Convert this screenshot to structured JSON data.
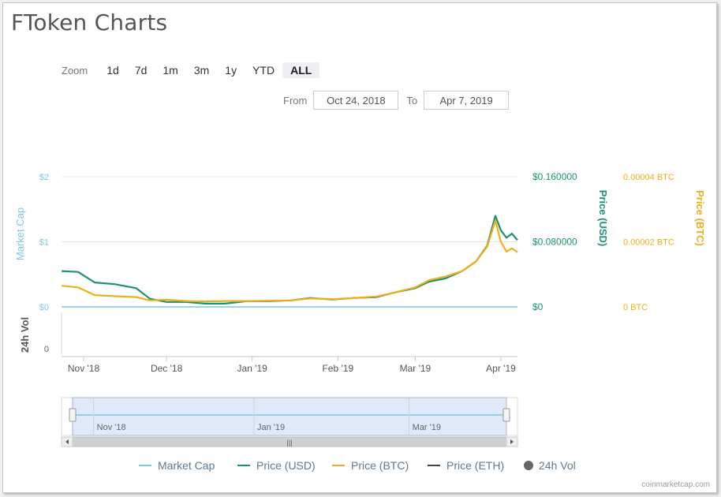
{
  "page": {
    "title": "FToken Charts",
    "watermark": "coinmarketcap.com"
  },
  "zoom": {
    "label": "Zoom",
    "buttons": [
      "1d",
      "7d",
      "1m",
      "3m",
      "1y",
      "YTD",
      "ALL"
    ],
    "active": "ALL"
  },
  "range": {
    "from_label": "From",
    "from_value": "Oct 24, 2018",
    "to_label": "To",
    "to_value": "Apr 7, 2019"
  },
  "colors": {
    "market_cap": "#7cc8e0",
    "price_usd": "#1a9273",
    "price_btc": "#f2ad1a",
    "price_eth": "#444444",
    "vol": "#666666",
    "grid": "#e6e6e6",
    "navigator_fill": "#dfe9f9",
    "navigator_border": "#aab5cc"
  },
  "chart_data": {
    "type": "line",
    "x_range": [
      "2018-10-24",
      "2019-04-07"
    ],
    "x_ticks": [
      "Nov '18",
      "Dec '18",
      "Jan '19",
      "Feb '19",
      "Mar '19",
      "Apr '19"
    ],
    "navigator_ticks": [
      "Nov '18",
      "Jan '19",
      "Mar '19"
    ],
    "axes": {
      "market_cap": {
        "title": "Market Cap",
        "ticks": [
          "$2",
          "$1",
          "$0"
        ],
        "range": [
          0,
          2
        ]
      },
      "price_usd": {
        "title": "Price (USD)",
        "ticks": [
          "$0.160000",
          "$0.080000",
          "$0"
        ],
        "range": [
          0,
          0.16
        ]
      },
      "price_btc": {
        "title": "Price (BTC)",
        "ticks": [
          "0.00004 BTC",
          "0.00002 BTC",
          "0 BTC"
        ],
        "range": [
          0,
          4e-05
        ]
      },
      "volume": {
        "title": "24h Vol",
        "ticks": [
          "0"
        ]
      }
    },
    "legend": [
      "Market Cap",
      "Price (USD)",
      "Price (BTC)",
      "Price (ETH)",
      "24h Vol"
    ],
    "series": [
      {
        "name": "Price (USD)",
        "axis": "price_usd",
        "x": [
          "2018-10-24",
          "2018-10-30",
          "2018-11-05",
          "2018-11-12",
          "2018-11-20",
          "2018-11-25",
          "2018-12-01",
          "2018-12-08",
          "2018-12-15",
          "2018-12-22",
          "2018-12-30",
          "2019-01-07",
          "2019-01-15",
          "2019-01-22",
          "2019-01-30",
          "2019-02-07",
          "2019-02-15",
          "2019-02-22",
          "2019-03-01",
          "2019-03-06",
          "2019-03-12",
          "2019-03-18",
          "2019-03-23",
          "2019-03-27",
          "2019-03-30",
          "2019-04-01",
          "2019-04-03",
          "2019-04-05",
          "2019-04-07"
        ],
        "y": [
          0.044,
          0.043,
          0.03,
          0.028,
          0.023,
          0.01,
          0.006,
          0.006,
          0.004,
          0.004,
          0.007,
          0.007,
          0.008,
          0.011,
          0.009,
          0.011,
          0.012,
          0.018,
          0.023,
          0.031,
          0.035,
          0.044,
          0.056,
          0.075,
          0.112,
          0.094,
          0.085,
          0.09,
          0.082
        ]
      },
      {
        "name": "Price (BTC)",
        "axis": "price_btc",
        "x": [
          "2018-10-24",
          "2018-10-30",
          "2018-11-05",
          "2018-11-12",
          "2018-11-20",
          "2018-11-25",
          "2018-12-01",
          "2018-12-08",
          "2018-12-15",
          "2018-12-22",
          "2018-12-30",
          "2019-01-07",
          "2019-01-15",
          "2019-01-22",
          "2019-01-30",
          "2019-02-07",
          "2019-02-15",
          "2019-02-22",
          "2019-03-01",
          "2019-03-06",
          "2019-03-12",
          "2019-03-18",
          "2019-03-23",
          "2019-03-27",
          "2019-03-30",
          "2019-04-01",
          "2019-04-03",
          "2019-04-05",
          "2019-04-07"
        ],
        "y": [
          6.5e-06,
          6e-06,
          3.6e-06,
          3.3e-06,
          3e-06,
          2e-06,
          2.2e-06,
          1.8e-06,
          1.7e-06,
          1.8e-06,
          1.8e-06,
          1.9e-06,
          2e-06,
          2.6e-06,
          2.4e-06,
          2.7e-06,
          3.2e-06,
          4.5e-06,
          6e-06,
          8.2e-06,
          9.3e-06,
          1.1e-05,
          1.4e-05,
          1.85e-05,
          2.65e-05,
          2e-05,
          1.7e-05,
          1.8e-05,
          1.68e-05
        ]
      },
      {
        "name": "Market Cap",
        "axis": "market_cap",
        "x": [
          "2018-10-24",
          "2019-04-07"
        ],
        "y": [
          0,
          0
        ]
      }
    ]
  }
}
